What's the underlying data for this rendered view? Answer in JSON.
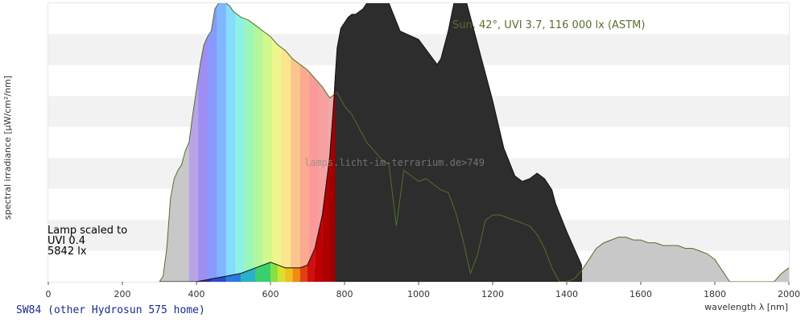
{
  "chart_data": {
    "type": "area",
    "xlabel": "wavelength λ [nm]",
    "ylabel": "spectral irradiance [µW/cm²/nm]",
    "xlim": [
      0,
      2000
    ],
    "xticks": [
      "0",
      "200",
      "400",
      "600",
      "800",
      "1000",
      "1200",
      "1400",
      "1600",
      "1800",
      "2000"
    ],
    "ylim": [
      0,
      1
    ],
    "grid": "horizontal bands",
    "sun_label": "Sun, 42°, UVI 3.7, 116 000 lx (ASTM)",
    "watermark": "lamps.licht-im-terrarium.de>749",
    "lamp_scale_lines": [
      "Lamp scaled to",
      "UVI 0.4",
      "5842 lx"
    ],
    "lamp_name": "SW84 (other Hydrosun 575 home)",
    "series": [
      {
        "role": "sun",
        "x": [
          300,
          310,
          320,
          330,
          340,
          350,
          360,
          370,
          380,
          390,
          400,
          410,
          420,
          430,
          440,
          450,
          460,
          470,
          480,
          490,
          500,
          520,
          540,
          560,
          580,
          600,
          620,
          640,
          660,
          680,
          700,
          720,
          740,
          760,
          780,
          800,
          820,
          840,
          860,
          880,
          900,
          920,
          940,
          960,
          980,
          1000,
          1020,
          1040,
          1060,
          1080,
          1100,
          1120,
          1140,
          1160,
          1180,
          1200,
          1220,
          1240,
          1260,
          1280,
          1300,
          1320,
          1340,
          1360,
          1380,
          1400,
          1420,
          1440,
          1460,
          1480,
          1500,
          1520,
          1540,
          1560,
          1580,
          1600,
          1620,
          1640,
          1660,
          1680,
          1700,
          1720,
          1740,
          1760,
          1780,
          1800,
          1820,
          1840,
          1860,
          1880,
          1900,
          1920,
          1940,
          1960,
          1980,
          2000
        ],
        "y": [
          0.0,
          0.02,
          0.12,
          0.3,
          0.37,
          0.4,
          0.42,
          0.47,
          0.5,
          0.6,
          0.69,
          0.78,
          0.85,
          0.88,
          0.9,
          0.98,
          1.0,
          1.02,
          1.0,
          0.99,
          0.97,
          0.95,
          0.94,
          0.92,
          0.9,
          0.88,
          0.85,
          0.83,
          0.8,
          0.78,
          0.76,
          0.73,
          0.7,
          0.66,
          0.68,
          0.63,
          0.6,
          0.55,
          0.5,
          0.47,
          0.44,
          0.42,
          0.2,
          0.4,
          0.38,
          0.36,
          0.37,
          0.35,
          0.33,
          0.32,
          0.25,
          0.15,
          0.03,
          0.1,
          0.22,
          0.24,
          0.24,
          0.23,
          0.22,
          0.21,
          0.2,
          0.17,
          0.12,
          0.05,
          0.0,
          0.0,
          0.01,
          0.04,
          0.08,
          0.12,
          0.14,
          0.15,
          0.16,
          0.16,
          0.15,
          0.15,
          0.14,
          0.14,
          0.13,
          0.13,
          0.13,
          0.12,
          0.12,
          0.11,
          0.1,
          0.08,
          0.04,
          0.0,
          0.0,
          0.0,
          0.0,
          0.0,
          0.0,
          0.0,
          0.03,
          0.05
        ]
      },
      {
        "role": "lamp",
        "x": [
          300,
          320,
          340,
          360,
          380,
          400,
          410,
          420,
          440,
          450,
          460,
          480,
          500,
          520,
          540,
          560,
          580,
          600,
          610,
          620,
          640,
          660,
          680,
          700,
          710,
          720,
          730,
          740,
          745,
          750,
          755,
          760,
          765,
          770,
          775,
          780,
          790,
          800,
          810,
          820,
          830,
          850,
          870,
          890,
          900,
          920,
          950,
          1000,
          1050,
          1060,
          1080,
          1100,
          1120,
          1150,
          1200,
          1230,
          1260,
          1280,
          1300,
          1320,
          1340,
          1360,
          1370,
          1400,
          1440
        ],
        "y": [
          0.0,
          0.0,
          0.0,
          0.0,
          0.0,
          0.0,
          0.0,
          0.0,
          0.0,
          0.0,
          0.0,
          0.0,
          0.0,
          0.0,
          0.0,
          0.0,
          0.0,
          0.0,
          0.0,
          0.0,
          0.0,
          0.0,
          0.0,
          0.01,
          0.02,
          0.04,
          0.07,
          0.12,
          0.16,
          0.21,
          0.28,
          0.36,
          0.48,
          0.62,
          0.74,
          0.84,
          0.91,
          0.93,
          0.95,
          0.96,
          0.96,
          0.98,
          1.02,
          1.06,
          1.1,
          1.0,
          0.9,
          0.87,
          0.78,
          0.8,
          0.9,
          1.03,
          1.05,
          0.9,
          0.65,
          0.48,
          0.38,
          0.36,
          0.37,
          0.39,
          0.37,
          0.33,
          0.28,
          0.18,
          0.06
        ]
      }
    ]
  }
}
